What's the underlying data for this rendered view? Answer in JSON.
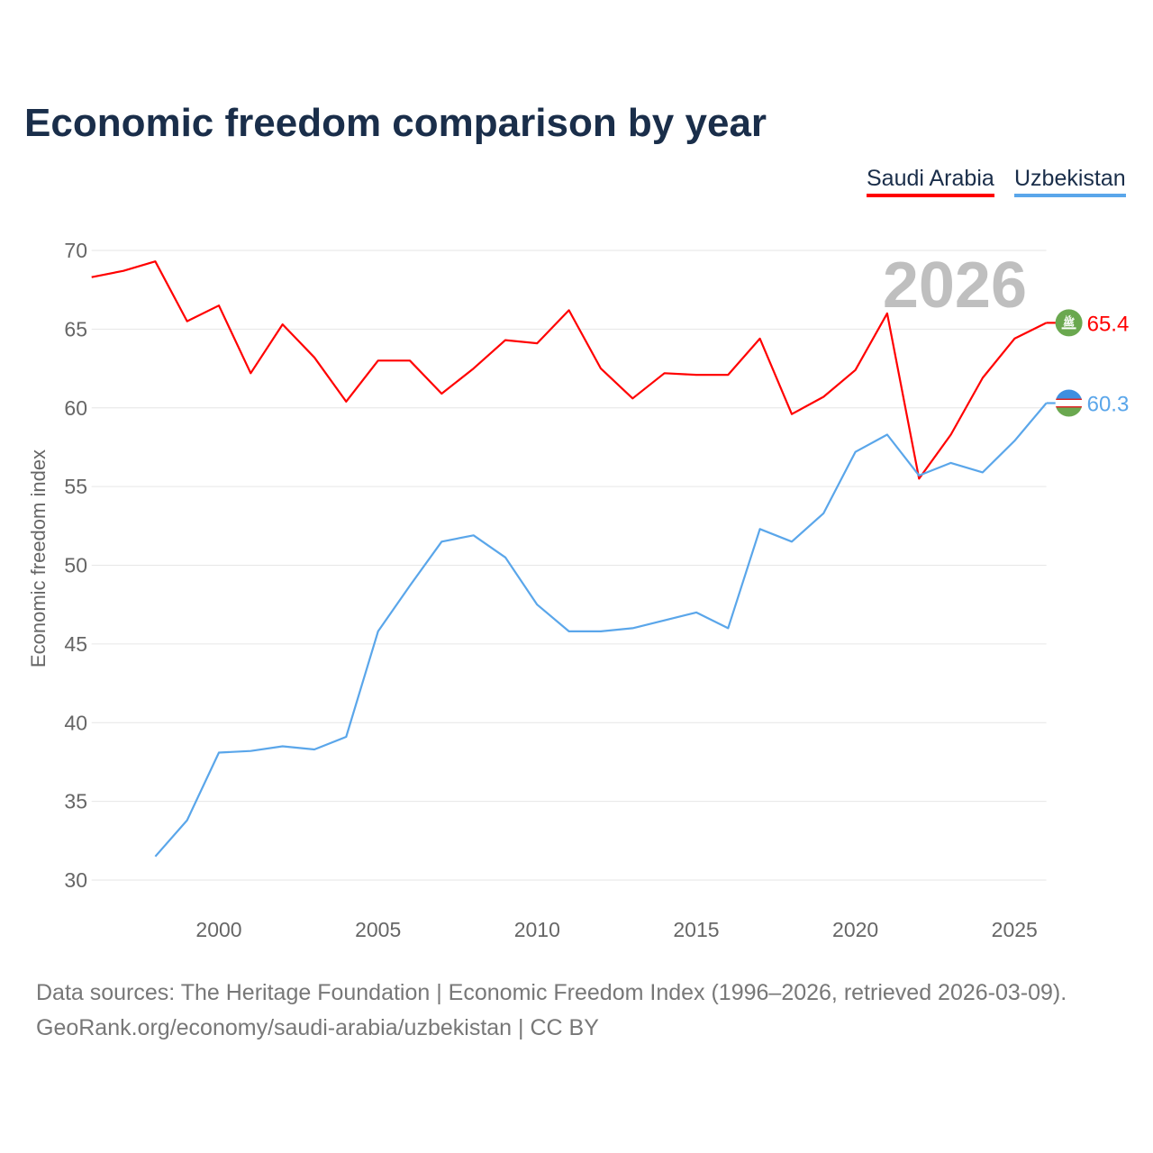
{
  "title": "Economic freedom comparison by year",
  "source_line1": "Data sources: The Heritage Foundation | Economic Freedom Index (1996–2026, retrieved 2026-03-09).",
  "source_line2": "GeoRank.org/economy/saudi-arabia/uzbekistan | CC BY",
  "chart_data": {
    "type": "line",
    "title": "Economic freedom comparison by year",
    "ylabel": "Economic freedom index",
    "xlabel": "",
    "ylim": [
      30,
      70
    ],
    "xlim": [
      1996,
      2026
    ],
    "yticks": [
      30,
      35,
      40,
      45,
      50,
      55,
      60,
      65,
      70
    ],
    "xticks": [
      2000,
      2005,
      2010,
      2015,
      2020,
      2025
    ],
    "grid": true,
    "legend": "top-right",
    "year_label": "2026",
    "series": [
      {
        "name": "Saudi Arabia",
        "color": "#ff0000",
        "end_label": "65.4",
        "flag": "saudi-arabia-flag",
        "x": [
          1996,
          1997,
          1998,
          1999,
          2000,
          2001,
          2002,
          2003,
          2004,
          2005,
          2006,
          2007,
          2008,
          2009,
          2010,
          2011,
          2012,
          2013,
          2014,
          2015,
          2016,
          2017,
          2018,
          2019,
          2020,
          2021,
          2022,
          2023,
          2024,
          2025,
          2026
        ],
        "values": [
          68.3,
          68.7,
          69.3,
          65.5,
          66.5,
          62.2,
          65.3,
          63.2,
          60.4,
          63.0,
          63.0,
          60.9,
          62.5,
          64.3,
          64.1,
          66.2,
          62.5,
          60.6,
          62.2,
          62.1,
          62.1,
          64.4,
          59.6,
          60.7,
          62.4,
          66.0,
          55.5,
          58.3,
          61.9,
          64.4,
          65.4
        ]
      },
      {
        "name": "Uzbekistan",
        "color": "#5aa6ea",
        "end_label": "60.3",
        "flag": "uzbekistan-flag",
        "x": [
          1998,
          1999,
          2000,
          2001,
          2002,
          2003,
          2004,
          2005,
          2006,
          2007,
          2008,
          2009,
          2010,
          2011,
          2012,
          2013,
          2014,
          2015,
          2016,
          2017,
          2018,
          2019,
          2020,
          2021,
          2022,
          2023,
          2024,
          2025,
          2026
        ],
        "values": [
          31.5,
          33.8,
          38.1,
          38.2,
          38.5,
          38.3,
          39.1,
          45.8,
          48.7,
          51.5,
          51.9,
          50.5,
          47.5,
          45.8,
          45.8,
          46.0,
          46.5,
          47.0,
          46.0,
          52.3,
          51.5,
          53.3,
          57.2,
          58.3,
          55.7,
          56.5,
          55.9,
          57.9,
          60.3
        ]
      }
    ]
  }
}
